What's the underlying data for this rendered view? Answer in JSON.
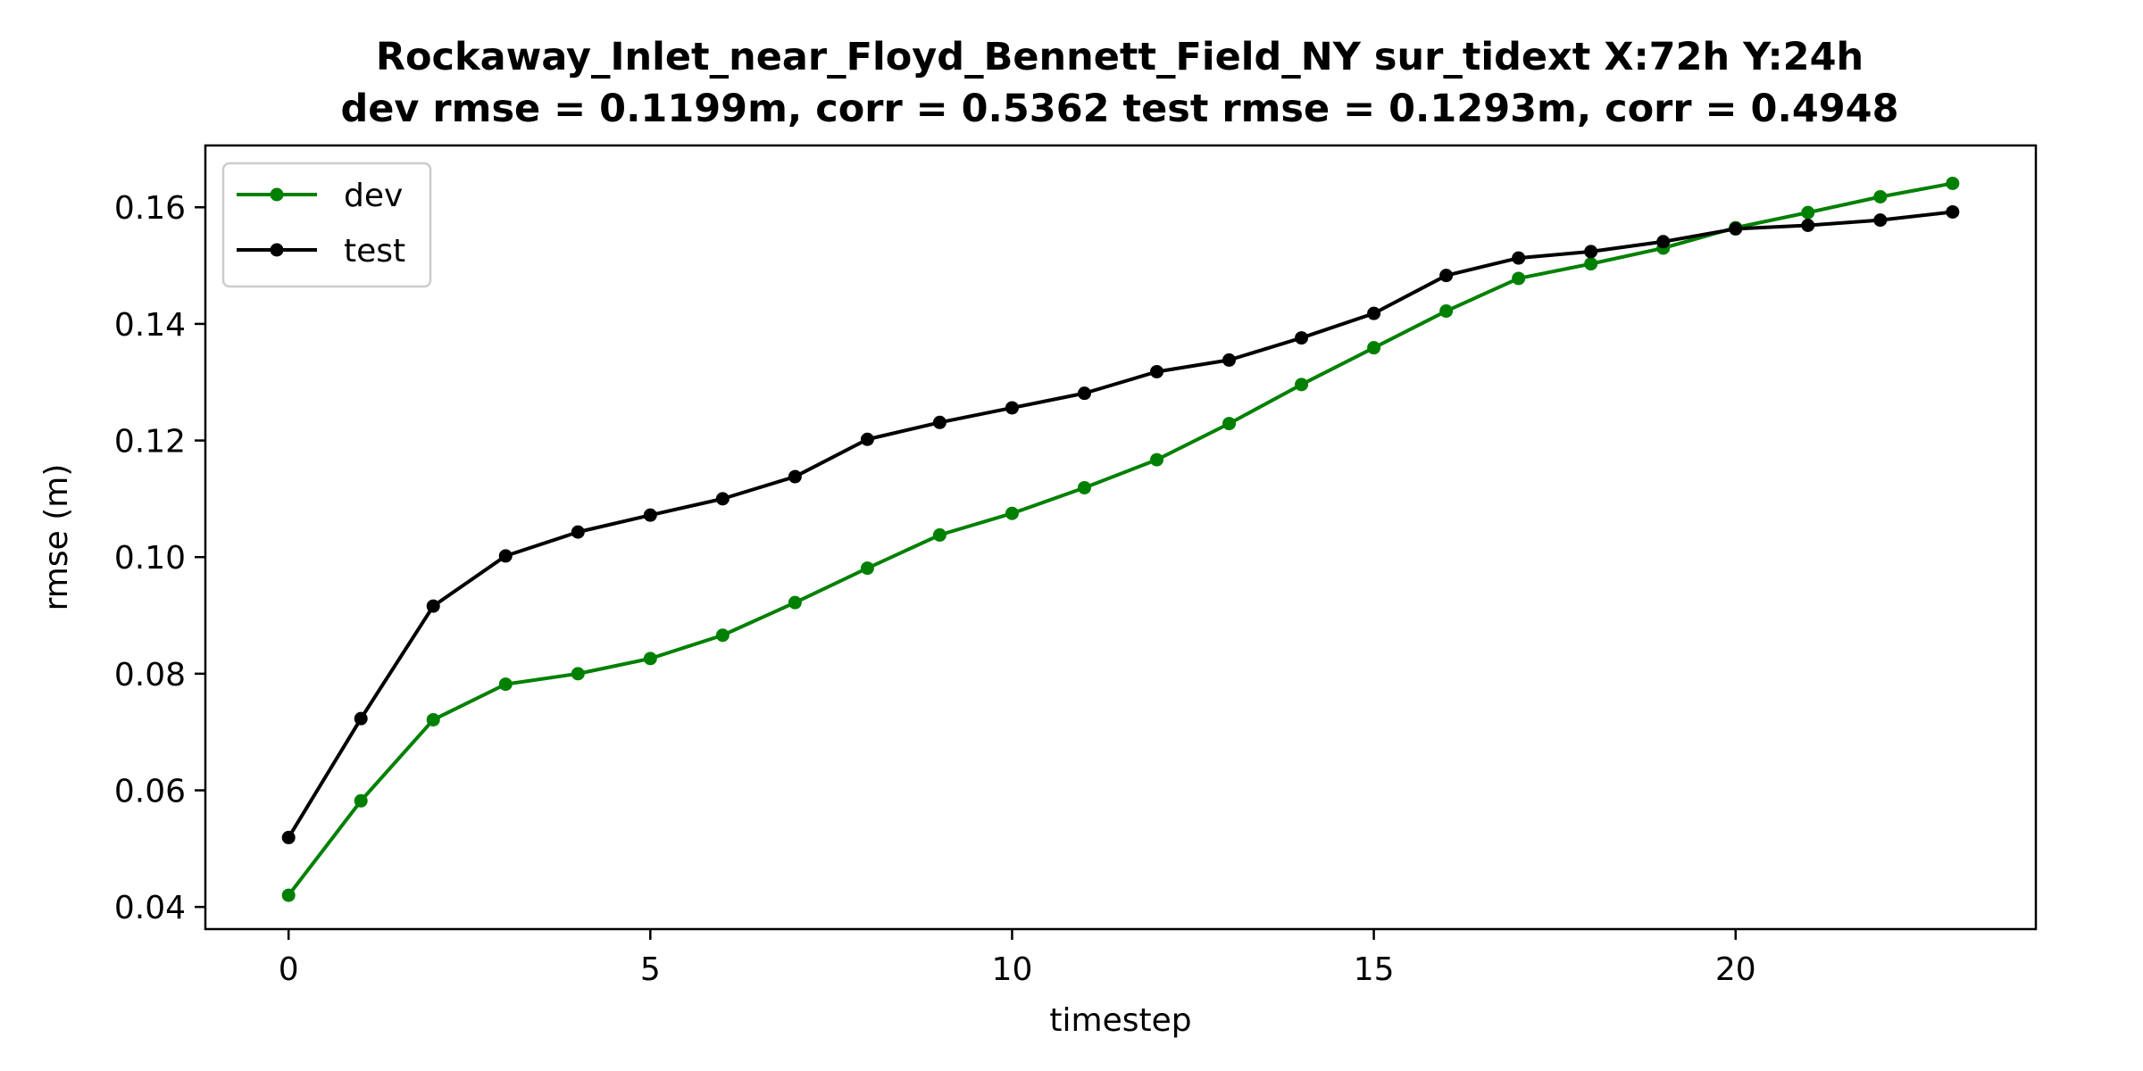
{
  "chart_data": {
    "type": "line",
    "title_line1": "Rockaway_Inlet_near_Floyd_Bennett_Field_NY   sur_tidext   X:72h   Y:24h",
    "title_line2": "dev rmse = 0.1199m, corr = 0.5362   test rmse = 0.1293m, corr = 0.4948",
    "xlabel": "timestep",
    "ylabel": "rmse (m)",
    "xlim": [
      -1.15,
      24.15
    ],
    "ylim": [
      0.0362,
      0.1706
    ],
    "x_ticks": [
      0,
      5,
      10,
      15,
      20
    ],
    "x_tick_labels": [
      "0",
      "5",
      "10",
      "15",
      "20"
    ],
    "y_ticks": [
      0.04,
      0.06,
      0.08,
      0.1,
      0.12,
      0.14,
      0.16
    ],
    "y_tick_labels": [
      "0.04",
      "0.06",
      "0.08",
      "0.10",
      "0.12",
      "0.14",
      "0.16"
    ],
    "grid": false,
    "legend_position": "top-left",
    "x": [
      0,
      1,
      2,
      3,
      4,
      5,
      6,
      7,
      8,
      9,
      10,
      11,
      12,
      13,
      14,
      15,
      16,
      17,
      18,
      19,
      20,
      21,
      22,
      23
    ],
    "series": [
      {
        "name": "dev",
        "color": "#008000",
        "values": [
          0.042,
          0.0582,
          0.0721,
          0.0782,
          0.08,
          0.0826,
          0.0866,
          0.0922,
          0.0981,
          0.1038,
          0.1075,
          0.1119,
          0.1167,
          0.1229,
          0.1296,
          0.1359,
          0.1422,
          0.1478,
          0.1503,
          0.153,
          0.1565,
          0.1591,
          0.1618,
          0.1641
        ]
      },
      {
        "name": "test",
        "color": "#000000",
        "values": [
          0.0519,
          0.0723,
          0.0916,
          0.1002,
          0.1043,
          0.1072,
          0.11,
          0.1138,
          0.1202,
          0.1231,
          0.1256,
          0.1281,
          0.1318,
          0.1338,
          0.1376,
          0.1418,
          0.1483,
          0.1513,
          0.1524,
          0.1541,
          0.1563,
          0.1569,
          0.1578,
          0.1592
        ]
      }
    ]
  }
}
